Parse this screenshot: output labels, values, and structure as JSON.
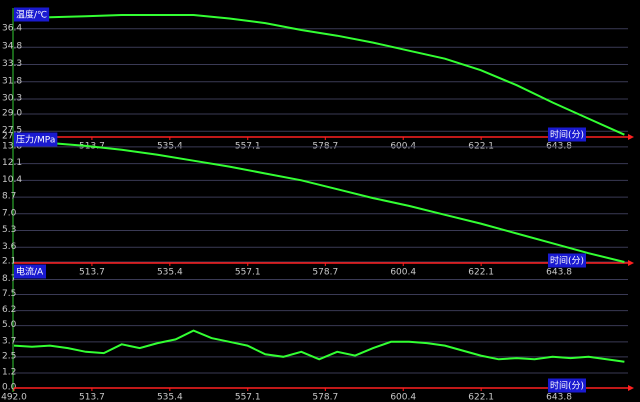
{
  "chart_data": [
    {
      "type": "line",
      "title": "温度/℃",
      "x_label": "时间(分)",
      "color": "#33ff33",
      "axis_color": "#ff2020",
      "grid": true,
      "x": [
        492,
        502,
        512,
        522,
        532,
        542,
        552,
        562,
        572,
        582,
        592,
        602,
        612,
        622,
        632,
        642,
        652,
        662
      ],
      "values": [
        37.3,
        37.4,
        37.5,
        37.6,
        37.6,
        37.6,
        37.3,
        36.9,
        36.3,
        35.8,
        35.2,
        34.5,
        33.8,
        32.8,
        31.5,
        30.0,
        28.6,
        27.2
      ],
      "xlim": [
        492,
        663
      ],
      "ylim": [
        27.0,
        37.6
      ],
      "xticks": [
        513.7,
        535.4,
        557.1,
        578.7,
        600.4,
        622.1,
        643.8
      ],
      "yticks": [
        36.4,
        34.8,
        33.3,
        31.8,
        30.3,
        {
          "value": 29,
          "label": "29.0"
        },
        27.5,
        {
          "value": 27,
          "label": "27.0"
        }
      ]
    },
    {
      "type": "line",
      "title": "压力/MPa",
      "x_label": "时间(分)",
      "color": "#33ff33",
      "axis_color": "#ff2020",
      "grid": true,
      "x": [
        492,
        502,
        512,
        522,
        532,
        542,
        552,
        562,
        572,
        582,
        592,
        602,
        612,
        622,
        632,
        642,
        652,
        662
      ],
      "values": [
        14.4,
        14.2,
        13.9,
        13.5,
        13.0,
        12.4,
        11.8,
        11.1,
        10.4,
        9.5,
        8.6,
        7.8,
        6.9,
        6.0,
        5.0,
        4.0,
        3.0,
        2.1
      ],
      "xlim": [
        492,
        663
      ],
      "ylim": [
        2.0,
        14.5
      ],
      "xticks": [
        513.7,
        535.4,
        557.1,
        578.7,
        600.4,
        622.1,
        643.8
      ],
      "yticks": [
        13.8,
        12.1,
        10.4,
        8.7,
        {
          "value": 7,
          "label": "7.0"
        },
        5.3,
        3.6,
        2.1
      ]
    },
    {
      "type": "line",
      "title": "电流/A",
      "x_label": "时间(分)",
      "color": "#33ff33",
      "axis_color": "#ff2020",
      "grid": true,
      "x": [
        492,
        497,
        502,
        507,
        512,
        517,
        522,
        527,
        532,
        537,
        542,
        547,
        552,
        557,
        562,
        567,
        572,
        577,
        582,
        587,
        592,
        597,
        602,
        607,
        612,
        617,
        622,
        627,
        632,
        637,
        642,
        647,
        652,
        657,
        662
      ],
      "values": [
        3.4,
        3.3,
        3.4,
        3.2,
        2.9,
        2.8,
        3.5,
        3.2,
        3.6,
        3.9,
        4.6,
        4.0,
        3.7,
        3.4,
        2.7,
        2.5,
        2.9,
        2.3,
        2.9,
        2.6,
        3.2,
        3.7,
        3.7,
        3.6,
        3.4,
        3.0,
        2.6,
        2.3,
        2.4,
        2.3,
        2.5,
        2.4,
        2.5,
        2.3,
        2.1
      ],
      "xlim": [
        492,
        663
      ],
      "ylim": [
        0,
        9.3
      ],
      "xticks": [
        {
          "value": 492,
          "label": "492.0"
        },
        513.7,
        535.4,
        557.1,
        578.7,
        600.4,
        622.1,
        643.8
      ],
      "yticks": [
        8.7,
        7.5,
        6.2,
        {
          "value": 5,
          "label": "5.0"
        },
        3.7,
        2.5,
        1.2,
        {
          "value": 0,
          "label": "0.0"
        }
      ]
    }
  ]
}
